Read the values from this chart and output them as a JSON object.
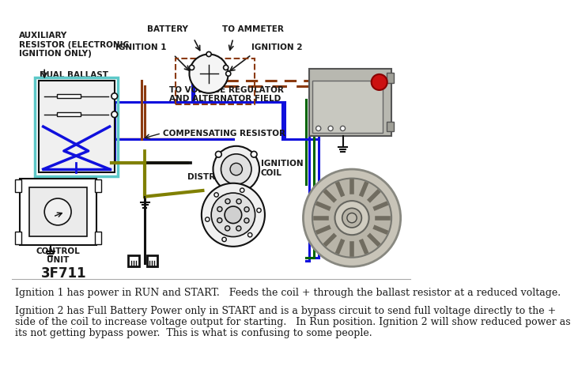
{
  "bg_color": "#ffffff",
  "text_line1": "Ignition 1 has power in RUN and START.   Feeds the coil + through the ballast resistor at a reduced voltage.",
  "text_line2": "Ignition 2 has Full Battery Power only in START and is a bypass circuit to send full voltage directly to the +",
  "text_line3": "side of the coil to increase voltage output for starting.   In Run position. Ignition 2 will show reduced power as",
  "text_line4": "its not getting bypass power.  This is what is confusing to some people.",
  "text_fontsize": 9.0,
  "label_fontsize": 7.5,
  "text_color": "#1a1a1a",
  "wire_blue": "#1010dd",
  "wire_brown": "#8B3A10",
  "wire_green": "#006400",
  "wire_olive": "#808000",
  "wire_black": "#111111",
  "wire_teal": "#5cc8c8",
  "code_text": "3F711",
  "lw": 2.2
}
